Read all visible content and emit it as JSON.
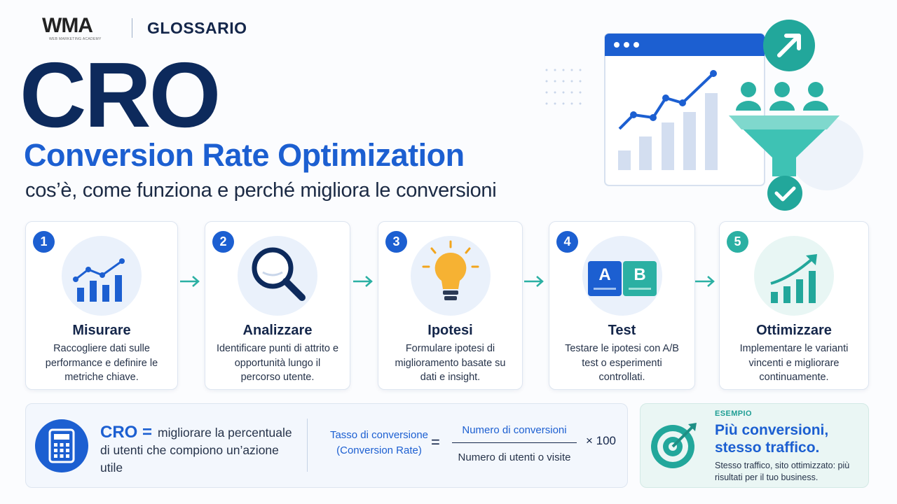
{
  "header": {
    "logo": "WMA",
    "logo_tagline": "WEB MARKETING ACADEMY",
    "section": "GLOSSARIO"
  },
  "hero": {
    "title": "CRO",
    "subtitle": "Conversion Rate Optimization",
    "tagline": "cos’è, come funziona e perché migliora le conversioni"
  },
  "steps": [
    {
      "number": "1",
      "title": "Misurare",
      "text": "Raccogliere dati sulle performance e definire le metriche chiave."
    },
    {
      "number": "2",
      "title": "Analizzare",
      "text": "Identificare punti di attrito e opportunità lungo il percorso utente."
    },
    {
      "number": "3",
      "title": "Ipotesi",
      "text": "Formulare ipotesi di miglioramento basate su dati e insight."
    },
    {
      "number": "4",
      "title": "Test",
      "text": "Testare le ipotesi con A/B test o esperimenti controllati.",
      "ab_labels": [
        "A",
        "B"
      ]
    },
    {
      "number": "5",
      "title": "Ottimizzare",
      "text": "Implementare le varianti vincenti e migliorare continuamente."
    }
  ],
  "definition": {
    "term": "CRO =",
    "text": "migliorare la percentuale di utenti che compiono un’azione utile"
  },
  "formula": {
    "label": "Tasso di conversione",
    "label_note": "(Conversion Rate)",
    "equals": "=",
    "numerator": "Numero di conversioni",
    "denominator": "Numero di utenti o visite",
    "multiplier": "× 100"
  },
  "example": {
    "tag": "ESEMPIO",
    "title": "Più conversioni, stesso traffico.",
    "text": "Stesso traffico, sito ottimizzato: più risultati per il tuo business."
  }
}
